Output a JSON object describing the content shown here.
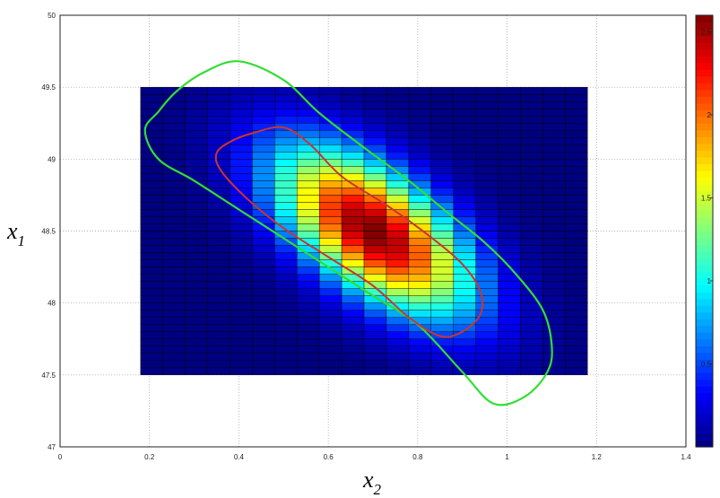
{
  "chart_data": {
    "type": "heatmap",
    "title": "",
    "xlabel": "x",
    "xlabel_sub": "2",
    "ylabel": "x",
    "ylabel_sub": "1",
    "xlim": [
      0,
      1.4
    ],
    "ylim": [
      47,
      50
    ],
    "x_ticks": [
      "0",
      "0.2",
      "0.4",
      "0.6",
      "0.8",
      "1",
      "1.2",
      "1.4"
    ],
    "y_ticks": [
      "47",
      "47.5",
      "48",
      "48.5",
      "49",
      "49.5",
      "50"
    ],
    "grid": true,
    "colormap": "jet",
    "colorbar": {
      "range": [
        0,
        2.6
      ],
      "ticks": [
        "0.5",
        "1",
        "1.5",
        "2",
        "2.5"
      ]
    },
    "surface": {
      "x_range": [
        0.18,
        1.18
      ],
      "y_range": [
        47.5,
        49.5
      ],
      "x_steps": 20,
      "y_steps": 40,
      "peak": 2.6,
      "mean": [
        0.7,
        48.5
      ],
      "std": [
        0.15,
        0.4
      ],
      "correlation": -0.6
    },
    "contours": [
      {
        "color": "#33dd33",
        "points": [
          [
            0.4,
            49.68
          ],
          [
            0.32,
            49.6
          ],
          [
            0.26,
            49.47
          ],
          [
            0.22,
            49.33
          ],
          [
            0.19,
            49.2
          ],
          [
            0.22,
            49.0
          ],
          [
            0.3,
            48.85
          ],
          [
            0.4,
            48.65
          ],
          [
            0.5,
            48.45
          ],
          [
            0.6,
            48.25
          ],
          [
            0.7,
            48.05
          ],
          [
            0.8,
            47.85
          ],
          [
            0.9,
            47.52
          ],
          [
            0.97,
            47.3
          ],
          [
            1.04,
            47.35
          ],
          [
            1.09,
            47.52
          ],
          [
            1.1,
            47.7
          ],
          [
            1.08,
            47.95
          ],
          [
            1.02,
            48.2
          ],
          [
            0.95,
            48.42
          ],
          [
            0.87,
            48.62
          ],
          [
            0.78,
            48.85
          ],
          [
            0.68,
            49.08
          ],
          [
            0.58,
            49.32
          ],
          [
            0.5,
            49.55
          ]
        ]
      },
      {
        "color": "#cc3333",
        "points": [
          [
            0.5,
            49.22
          ],
          [
            0.43,
            49.18
          ],
          [
            0.38,
            49.12
          ],
          [
            0.35,
            49.04
          ],
          [
            0.36,
            48.92
          ],
          [
            0.42,
            48.72
          ],
          [
            0.5,
            48.52
          ],
          [
            0.6,
            48.32
          ],
          [
            0.7,
            48.12
          ],
          [
            0.78,
            47.9
          ],
          [
            0.85,
            47.77
          ],
          [
            0.9,
            47.8
          ],
          [
            0.94,
            47.92
          ],
          [
            0.94,
            48.08
          ],
          [
            0.9,
            48.27
          ],
          [
            0.82,
            48.48
          ],
          [
            0.73,
            48.68
          ],
          [
            0.63,
            48.88
          ],
          [
            0.56,
            49.1
          ]
        ]
      }
    ]
  }
}
